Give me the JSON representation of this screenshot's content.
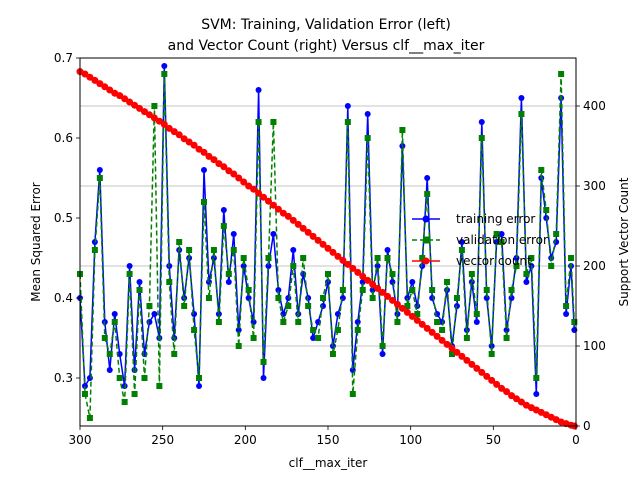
{
  "chart_data": {
    "type": "line",
    "title_line1": "SVM: Training, Validation Error (left)",
    "title_line2": "and Vector Count (right) Versus clf__max_iter",
    "xlabel": "clf__max_iter",
    "ylabel_left": "Mean Squared Error",
    "ylabel_right": "Support Vector Count",
    "xlim": [
      300,
      0
    ],
    "x_ticks": [
      300,
      250,
      200,
      150,
      100,
      50,
      0
    ],
    "ylim_left": [
      0.24,
      0.7
    ],
    "y_ticks_left": [
      0.3,
      0.4,
      0.5,
      0.6,
      0.7
    ],
    "ylim_right": [
      0,
      460
    ],
    "y_ticks_right": [
      0,
      100,
      200,
      300,
      400
    ],
    "grid": "horizontal lines at right-axis ticks",
    "legend_position": "center-right",
    "legend": [
      {
        "label": "training error",
        "color": "#0000ff",
        "marker": "circle",
        "style": "solid"
      },
      {
        "label": "validation error",
        "color": "#008000",
        "marker": "square",
        "style": "dashed"
      },
      {
        "label": "vector count",
        "color": "#ff0000",
        "marker": "circle",
        "style": "solid"
      }
    ],
    "x": [
      300,
      297,
      294,
      291,
      288,
      285,
      282,
      279,
      276,
      273,
      270,
      267,
      264,
      261,
      258,
      255,
      252,
      249,
      246,
      243,
      240,
      237,
      234,
      231,
      228,
      225,
      222,
      219,
      216,
      213,
      210,
      207,
      204,
      201,
      198,
      195,
      192,
      189,
      186,
      183,
      180,
      177,
      174,
      171,
      168,
      165,
      162,
      159,
      156,
      153,
      150,
      147,
      144,
      141,
      138,
      135,
      132,
      129,
      126,
      123,
      120,
      117,
      114,
      111,
      108,
      105,
      102,
      99,
      96,
      93,
      90,
      87,
      84,
      81,
      78,
      75,
      72,
      69,
      66,
      63,
      60,
      57,
      54,
      51,
      48,
      45,
      42,
      39,
      36,
      33,
      30,
      27,
      24,
      21,
      18,
      15,
      12,
      9,
      6,
      3,
      1
    ],
    "series": [
      {
        "name": "training error",
        "axis": "left",
        "values": [
          0.4,
          0.29,
          0.3,
          0.47,
          0.56,
          0.37,
          0.31,
          0.38,
          0.33,
          0.29,
          0.44,
          0.31,
          0.42,
          0.33,
          0.37,
          0.38,
          0.35,
          0.69,
          0.44,
          0.35,
          0.46,
          0.4,
          0.45,
          0.38,
          0.29,
          0.56,
          0.42,
          0.45,
          0.38,
          0.51,
          0.42,
          0.48,
          0.36,
          0.44,
          0.4,
          0.37,
          0.66,
          0.3,
          0.44,
          0.48,
          0.41,
          0.38,
          0.4,
          0.46,
          0.38,
          0.43,
          0.4,
          0.35,
          0.37,
          0.39,
          0.42,
          0.34,
          0.38,
          0.4,
          0.64,
          0.31,
          0.37,
          0.42,
          0.63,
          0.41,
          0.44,
          0.33,
          0.46,
          0.42,
          0.38,
          0.59,
          0.4,
          0.42,
          0.39,
          0.44,
          0.55,
          0.4,
          0.38,
          0.37,
          0.41,
          0.34,
          0.39,
          0.47,
          0.36,
          0.42,
          0.37,
          0.62,
          0.4,
          0.34,
          0.47,
          0.48,
          0.36,
          0.4,
          0.45,
          0.65,
          0.42,
          0.44,
          0.28,
          0.55,
          0.5,
          0.45,
          0.47,
          0.65,
          0.38,
          0.44,
          0.36
        ]
      },
      {
        "name": "validation error",
        "axis": "left",
        "values": [
          0.43,
          0.28,
          0.25,
          0.46,
          0.55,
          0.35,
          0.33,
          0.37,
          0.3,
          0.27,
          0.43,
          0.28,
          0.41,
          0.3,
          0.39,
          0.64,
          0.29,
          0.68,
          0.42,
          0.33,
          0.47,
          0.39,
          0.46,
          0.36,
          0.3,
          0.52,
          0.4,
          0.46,
          0.37,
          0.49,
          0.43,
          0.46,
          0.34,
          0.45,
          0.41,
          0.35,
          0.62,
          0.32,
          0.45,
          0.62,
          0.4,
          0.37,
          0.39,
          0.44,
          0.37,
          0.45,
          0.39,
          0.36,
          0.35,
          0.4,
          0.43,
          0.33,
          0.36,
          0.41,
          0.62,
          0.28,
          0.36,
          0.41,
          0.6,
          0.4,
          0.45,
          0.34,
          0.45,
          0.43,
          0.37,
          0.61,
          0.39,
          0.41,
          0.38,
          0.45,
          0.53,
          0.41,
          0.37,
          0.36,
          0.42,
          0.33,
          0.4,
          0.46,
          0.35,
          0.43,
          0.38,
          0.6,
          0.41,
          0.33,
          0.48,
          0.47,
          0.35,
          0.41,
          0.44,
          0.63,
          0.43,
          0.45,
          0.3,
          0.56,
          0.51,
          0.44,
          0.48,
          0.68,
          0.39,
          0.45,
          0.37
        ]
      },
      {
        "name": "vector count",
        "axis": "right",
        "values": [
          443,
          440,
          436,
          432,
          428,
          424,
          420,
          416,
          413,
          409,
          405,
          401,
          397,
          393,
          389,
          385,
          381,
          377,
          372,
          368,
          364,
          359,
          355,
          351,
          346,
          342,
          337,
          333,
          328,
          324,
          319,
          315,
          310,
          305,
          300,
          296,
          291,
          286,
          281,
          276,
          271,
          266,
          262,
          257,
          252,
          247,
          242,
          237,
          232,
          227,
          222,
          217,
          212,
          207,
          202,
          197,
          192,
          187,
          182,
          177,
          172,
          167,
          162,
          157,
          152,
          147,
          142,
          137,
          132,
          127,
          122,
          117,
          112,
          107,
          102,
          97,
          92,
          87,
          82,
          77,
          72,
          67,
          62,
          57,
          52,
          47,
          43,
          38,
          34,
          30,
          26,
          23,
          20,
          17,
          14,
          11,
          8,
          5,
          3,
          1,
          0
        ]
      }
    ]
  }
}
